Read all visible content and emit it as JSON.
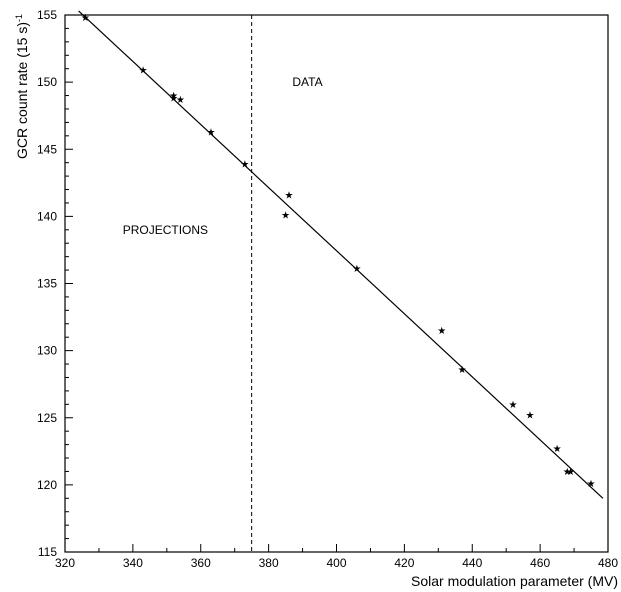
{
  "chart_data": {
    "type": "scatter",
    "title": "",
    "xlabel": "Solar modulation parameter (MV)",
    "ylabel_main": "GCR count rate (15 s)",
    "ylabel_sup": "-1",
    "xlim": [
      320,
      480
    ],
    "ylim": [
      115,
      155
    ],
    "xticks": [
      320,
      340,
      360,
      380,
      400,
      420,
      440,
      460,
      480
    ],
    "yticks": [
      115,
      120,
      125,
      130,
      135,
      140,
      145,
      150,
      155
    ],
    "grid": false,
    "legend": "none",
    "divider_x": 375,
    "annotations": [
      {
        "text": "DATA",
        "x": 387,
        "y": 150
      },
      {
        "text": "PROJECTIONS",
        "x": 337,
        "y": 139
      }
    ],
    "series": [
      {
        "marker": "star",
        "x": [
          326,
          343,
          352,
          352,
          354,
          363,
          373,
          385,
          386,
          406,
          431,
          437,
          452,
          457,
          465,
          468,
          469,
          475
        ],
        "y": [
          154.8,
          150.9,
          149.0,
          148.8,
          148.7,
          146.3,
          143.9,
          140.1,
          141.6,
          136.1,
          131.5,
          128.6,
          126.0,
          125.2,
          122.7,
          121.0,
          121.0,
          120.1
        ]
      }
    ],
    "fit_line": {
      "x": [
        324,
        478.5
      ],
      "y": [
        155.3,
        119.0
      ]
    },
    "colors": {
      "axis": "#000000",
      "marker": "#000000",
      "line": "#000000"
    }
  }
}
